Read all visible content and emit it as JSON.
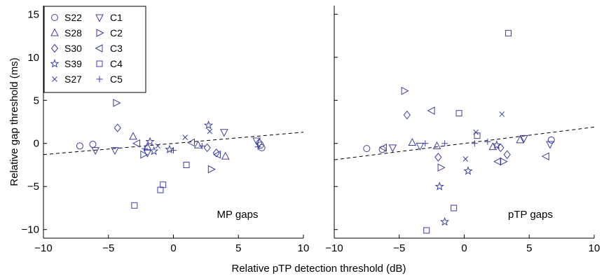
{
  "chart_data": {
    "type": "scatter",
    "xlabel": "Relative pTP detection threshold (dB)",
    "ylabel": "Relative gap threshold (ms)",
    "xlim": [
      -10,
      10
    ],
    "ylim": [
      -11,
      16
    ],
    "xticks": [
      "−10",
      "−5",
      "0",
      "5",
      "10"
    ],
    "yticks": [
      "−10",
      "−5",
      "0",
      "5",
      "10",
      "15"
    ],
    "color": "#3b3fa0",
    "legend": {
      "placement": "top-left of first panel",
      "entries": [
        {
          "name": "S22",
          "marker": "circle"
        },
        {
          "name": "S28",
          "marker": "triangle-up"
        },
        {
          "name": "S30",
          "marker": "diamond"
        },
        {
          "name": "S39",
          "marker": "star"
        },
        {
          "name": "S27",
          "marker": "x"
        },
        {
          "name": "C1",
          "marker": "triangle-down"
        },
        {
          "name": "C2",
          "marker": "triangle-right"
        },
        {
          "name": "C3",
          "marker": "triangle-left"
        },
        {
          "name": "C4",
          "marker": "square"
        },
        {
          "name": "C5",
          "marker": "plus"
        }
      ]
    },
    "panels": [
      {
        "label": "MP gaps",
        "fit_line": {
          "x": [
            -10,
            10
          ],
          "y": [
            -1.3,
            1.3
          ]
        },
        "points": [
          {
            "s": "circle",
            "x": -7.2,
            "y": -0.3
          },
          {
            "s": "circle",
            "x": -6.2,
            "y": -0.1
          },
          {
            "s": "circle",
            "x": 6.7,
            "y": -0.2
          },
          {
            "s": "circle",
            "x": 6.8,
            "y": -0.5
          },
          {
            "s": "triangle-up",
            "x": -3.1,
            "y": 0.8
          },
          {
            "s": "triangle-up",
            "x": -2.0,
            "y": -0.4
          },
          {
            "s": "triangle-up",
            "x": 1.9,
            "y": -0.2
          },
          {
            "s": "triangle-up",
            "x": 4.0,
            "y": -1.5
          },
          {
            "s": "diamond",
            "x": -4.3,
            "y": 1.8
          },
          {
            "s": "diamond",
            "x": 2.6,
            "y": -0.5
          },
          {
            "s": "diamond",
            "x": 3.3,
            "y": -1.1
          },
          {
            "s": "diamond",
            "x": 6.6,
            "y": 0.1
          },
          {
            "s": "star",
            "x": -1.5,
            "y": -0.9
          },
          {
            "s": "star",
            "x": -0.3,
            "y": -0.7
          },
          {
            "s": "star",
            "x": 2.7,
            "y": 2.1
          },
          {
            "s": "star",
            "x": -1.8,
            "y": 0.2
          },
          {
            "s": "x",
            "x": 0.9,
            "y": 0.7
          },
          {
            "s": "x",
            "x": 2.8,
            "y": 1.4
          },
          {
            "s": "x",
            "x": -1.2,
            "y": -0.3
          },
          {
            "s": "triangle-down",
            "x": -6.0,
            "y": -0.8
          },
          {
            "s": "triangle-down",
            "x": -4.5,
            "y": -0.8
          },
          {
            "s": "triangle-down",
            "x": -2.0,
            "y": -1.1
          },
          {
            "s": "triangle-down",
            "x": 3.9,
            "y": 1.3
          },
          {
            "s": "triangle-down",
            "x": 6.4,
            "y": 0.3
          },
          {
            "s": "triangle-right",
            "x": -4.4,
            "y": 4.7
          },
          {
            "s": "triangle-right",
            "x": 2.9,
            "y": -3.0
          },
          {
            "s": "triangle-right",
            "x": -2.3,
            "y": -1.3
          },
          {
            "s": "triangle-left",
            "x": -2.8,
            "y": 0.0
          },
          {
            "s": "triangle-left",
            "x": 3.4,
            "y": -1.3
          },
          {
            "s": "triangle-left",
            "x": 1.4,
            "y": 0.1
          },
          {
            "s": "square",
            "x": 1.0,
            "y": -2.5
          },
          {
            "s": "square",
            "x": -0.8,
            "y": -4.8
          },
          {
            "s": "square",
            "x": -1.0,
            "y": -5.4
          },
          {
            "s": "square",
            "x": -3.0,
            "y": -7.2
          },
          {
            "s": "plus",
            "x": -2.2,
            "y": -0.6
          },
          {
            "s": "plus",
            "x": 0.0,
            "y": -0.8
          },
          {
            "s": "plus",
            "x": 2.2,
            "y": -0.3
          },
          {
            "s": "plus",
            "x": 6.5,
            "y": -0.4
          }
        ]
      },
      {
        "label": "pTP gaps",
        "fit_line": {
          "x": [
            -10,
            10
          ],
          "y": [
            -1.9,
            1.9
          ]
        },
        "points": [
          {
            "s": "circle",
            "x": -7.5,
            "y": -0.6
          },
          {
            "s": "circle",
            "x": -6.3,
            "y": -0.7
          },
          {
            "s": "circle",
            "x": 6.7,
            "y": 0.4
          },
          {
            "s": "triangle-up",
            "x": -4.0,
            "y": 0.1
          },
          {
            "s": "triangle-up",
            "x": 2.2,
            "y": -0.4
          },
          {
            "s": "triangle-up",
            "x": 4.3,
            "y": 0.4
          },
          {
            "s": "triangle-up",
            "x": -2.1,
            "y": -0.3
          },
          {
            "s": "diamond",
            "x": -4.4,
            "y": 3.3
          },
          {
            "s": "diamond",
            "x": -2.0,
            "y": -1.6
          },
          {
            "s": "diamond",
            "x": 2.8,
            "y": -0.5
          },
          {
            "s": "diamond",
            "x": 3.3,
            "y": -1.3
          },
          {
            "s": "star",
            "x": -1.9,
            "y": -5.0
          },
          {
            "s": "star",
            "x": -1.5,
            "y": -9.1
          },
          {
            "s": "star",
            "x": 0.3,
            "y": -3.2
          },
          {
            "s": "star",
            "x": 2.5,
            "y": -0.2
          },
          {
            "s": "x",
            "x": 2.9,
            "y": 3.4
          },
          {
            "s": "x",
            "x": 0.1,
            "y": -1.8
          },
          {
            "s": "x",
            "x": 0.9,
            "y": 1.3
          },
          {
            "s": "triangle-down",
            "x": -5.5,
            "y": -0.5
          },
          {
            "s": "triangle-down",
            "x": -3.4,
            "y": -0.3
          },
          {
            "s": "triangle-down",
            "x": 4.6,
            "y": 0.6
          },
          {
            "s": "triangle-down",
            "x": 6.6,
            "y": -0.1
          },
          {
            "s": "triangle-right",
            "x": -4.6,
            "y": 6.1
          },
          {
            "s": "triangle-right",
            "x": -1.8,
            "y": -2.8
          },
          {
            "s": "triangle-right",
            "x": 3.0,
            "y": -2.1
          },
          {
            "s": "triangle-left",
            "x": -2.5,
            "y": 3.8
          },
          {
            "s": "triangle-left",
            "x": 2.6,
            "y": -2.1
          },
          {
            "s": "triangle-left",
            "x": 6.3,
            "y": -1.5
          },
          {
            "s": "triangle-left",
            "x": -6.2,
            "y": -0.5
          },
          {
            "s": "square",
            "x": 3.4,
            "y": 12.8
          },
          {
            "s": "square",
            "x": -0.4,
            "y": 3.5
          },
          {
            "s": "square",
            "x": -0.8,
            "y": -7.5
          },
          {
            "s": "square",
            "x": -2.9,
            "y": -10.1
          },
          {
            "s": "square",
            "x": 1.0,
            "y": 0.9
          },
          {
            "s": "plus",
            "x": -1.5,
            "y": 0.0
          },
          {
            "s": "plus",
            "x": 0.8,
            "y": 0.0
          },
          {
            "s": "plus",
            "x": -3.0,
            "y": 0.0
          },
          {
            "s": "plus",
            "x": 1.8,
            "y": 0.2
          }
        ]
      }
    ]
  }
}
